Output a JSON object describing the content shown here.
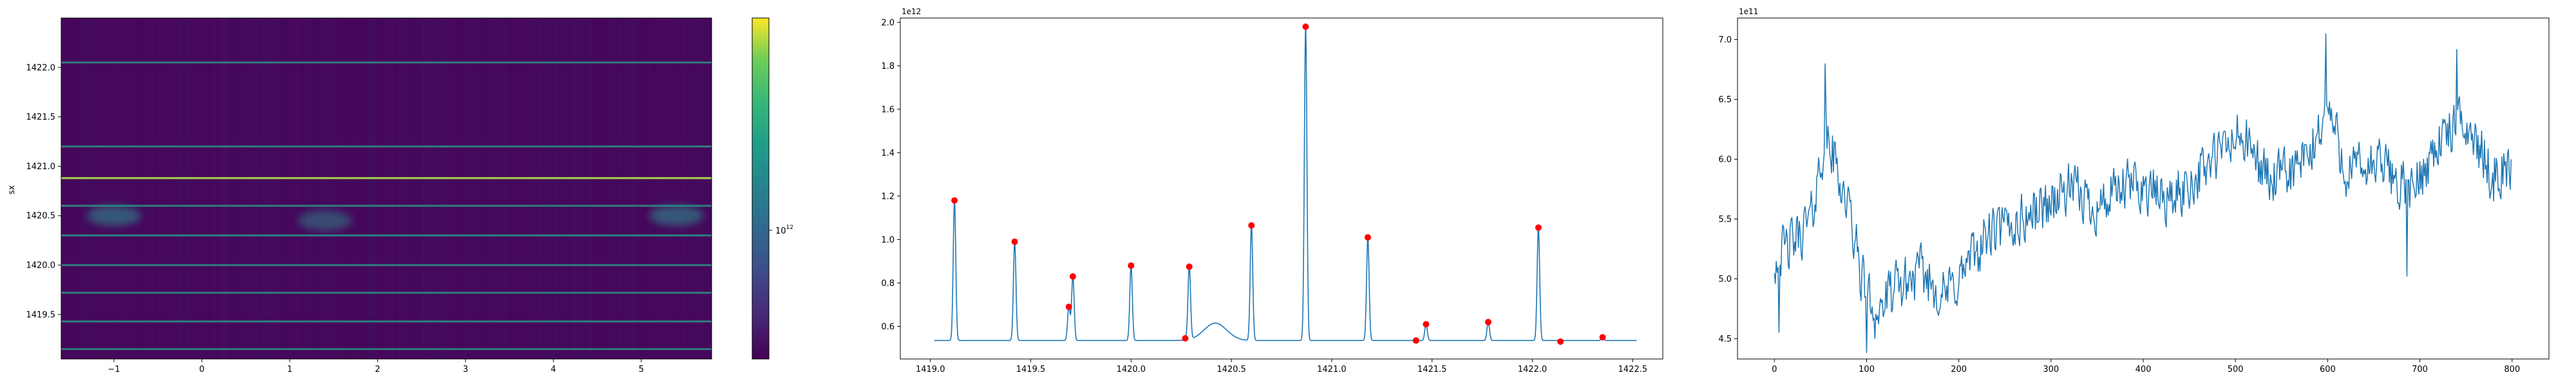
{
  "chart_data": [
    {
      "type": "heatmap",
      "title": "",
      "xlabel": "",
      "ylabel": "sx",
      "xlim": [
        -1.6,
        5.8
      ],
      "ylim": [
        1419.05,
        1422.5
      ],
      "x_ticks": [
        -1,
        0,
        1,
        2,
        3,
        4,
        5
      ],
      "x_tick_labels": [
        "−1",
        "0",
        "1",
        "2",
        "3",
        "4",
        "5"
      ],
      "y_ticks": [
        1419.5,
        1420.0,
        1420.5,
        1421.0,
        1421.5,
        1422.0
      ],
      "y_tick_labels": [
        "1419.5",
        "1420.0",
        "1420.5",
        "1421.0",
        "1421.5",
        "1422.0"
      ],
      "colormap": "viridis",
      "color_scale": "log",
      "colorbar_tick_label": "10",
      "colorbar_tick_exponent": "12",
      "colorbar_tick_value": 1000000000000.0,
      "bright_rows": [
        {
          "y": 1422.05,
          "intensity": 0.5
        },
        {
          "y": 1421.2,
          "intensity": 0.55
        },
        {
          "y": 1420.88,
          "intensity": 0.95
        },
        {
          "y": 1420.6,
          "intensity": 0.55
        },
        {
          "y": 1420.3,
          "intensity": 0.6
        },
        {
          "y": 1420.0,
          "intensity": 0.5
        },
        {
          "y": 1419.72,
          "intensity": 0.55
        },
        {
          "y": 1419.43,
          "intensity": 0.5
        },
        {
          "y": 1419.15,
          "intensity": 0.45
        }
      ],
      "blobs": [
        {
          "x": -1.0,
          "y": 1420.5,
          "intensity": 0.6
        },
        {
          "x": 1.4,
          "y": 1420.45,
          "intensity": 0.5
        },
        {
          "x": 5.4,
          "y": 1420.5,
          "intensity": 0.6
        }
      ]
    },
    {
      "type": "line",
      "title": "",
      "xlabel": "",
      "ylabel": "",
      "xlim": [
        1418.85,
        1422.65
      ],
      "ylim": [
        0.45,
        2.02
      ],
      "y_offset_label": "1e12",
      "x_ticks": [
        1419.0,
        1419.5,
        1420.0,
        1420.5,
        1421.0,
        1421.5,
        1422.0,
        1422.5
      ],
      "x_tick_labels": [
        "1419.0",
        "1419.5",
        "1420.0",
        "1420.5",
        "1421.0",
        "1421.5",
        "1422.0",
        "1422.5"
      ],
      "y_ticks": [
        0.6,
        0.8,
        1.0,
        1.2,
        1.4,
        1.6,
        1.8,
        2.0
      ],
      "y_tick_labels": [
        "0.6",
        "0.8",
        "1.0",
        "1.2",
        "1.4",
        "1.6",
        "1.8",
        "2.0"
      ],
      "baseline": 0.535,
      "x_start": 1419.02,
      "x_end": 1422.52,
      "bump": {
        "x": 1420.42,
        "height": 0.08,
        "width": 0.08
      },
      "peaks": [
        {
          "x": 1419.12,
          "y": 1.18
        },
        {
          "x": 1419.42,
          "y": 0.99
        },
        {
          "x": 1419.69,
          "y": 0.69
        },
        {
          "x": 1419.71,
          "y": 0.83
        },
        {
          "x": 1420.0,
          "y": 0.88
        },
        {
          "x": 1420.27,
          "y": 0.545
        },
        {
          "x": 1420.29,
          "y": 0.875
        },
        {
          "x": 1420.6,
          "y": 1.065
        },
        {
          "x": 1420.87,
          "y": 1.98
        },
        {
          "x": 1421.18,
          "y": 1.01
        },
        {
          "x": 1421.42,
          "y": 0.535
        },
        {
          "x": 1421.47,
          "y": 0.61
        },
        {
          "x": 1421.78,
          "y": 0.62
        },
        {
          "x": 1422.03,
          "y": 1.055
        },
        {
          "x": 1422.14,
          "y": 0.53
        },
        {
          "x": 1422.35,
          "y": 0.55
        }
      ],
      "line_color": "#1f77b4",
      "marker_color": "#ff0000"
    },
    {
      "type": "line",
      "title": "",
      "xlabel": "",
      "ylabel": "",
      "xlim": [
        -40,
        840
      ],
      "ylim": [
        4.33,
        7.18
      ],
      "y_offset_label": "1e11",
      "x_ticks": [
        0,
        100,
        200,
        300,
        400,
        500,
        600,
        700,
        800
      ],
      "x_tick_labels": [
        "0",
        "100",
        "200",
        "300",
        "400",
        "500",
        "600",
        "700",
        "800"
      ],
      "y_ticks": [
        4.5,
        5.0,
        5.5,
        6.0,
        6.5,
        7.0
      ],
      "y_tick_labels": [
        "4.5",
        "5.0",
        "5.5",
        "6.0",
        "6.5",
        "7.0"
      ],
      "n_points": 800,
      "trend": [
        [
          0,
          5.15
        ],
        [
          20,
          5.3
        ],
        [
          40,
          5.5
        ],
        [
          55,
          6.2
        ],
        [
          65,
          6.0
        ],
        [
          80,
          5.6
        ],
        [
          95,
          5.0
        ],
        [
          110,
          4.7
        ],
        [
          130,
          4.9
        ],
        [
          160,
          5.05
        ],
        [
          185,
          4.85
        ],
        [
          200,
          5.0
        ],
        [
          230,
          5.35
        ],
        [
          260,
          5.45
        ],
        [
          290,
          5.6
        ],
        [
          320,
          5.75
        ],
        [
          350,
          5.6
        ],
        [
          390,
          5.8
        ],
        [
          430,
          5.65
        ],
        [
          470,
          5.95
        ],
        [
          505,
          6.2
        ],
        [
          540,
          5.8
        ],
        [
          580,
          6.0
        ],
        [
          600,
          6.45
        ],
        [
          620,
          5.9
        ],
        [
          660,
          5.95
        ],
        [
          690,
          5.7
        ],
        [
          720,
          6.15
        ],
        [
          750,
          6.3
        ],
        [
          780,
          5.85
        ],
        [
          800,
          5.95
        ]
      ],
      "noise_amplitude": 0.28,
      "spikes": [
        {
          "x": 5,
          "y": 4.55
        },
        {
          "x": 55,
          "y": 6.8
        },
        {
          "x": 100,
          "y": 4.38
        },
        {
          "x": 598,
          "y": 7.05
        },
        {
          "x": 740,
          "y": 6.92
        },
        {
          "x": 686,
          "y": 5.02
        }
      ],
      "line_color": "#1f77b4"
    }
  ]
}
